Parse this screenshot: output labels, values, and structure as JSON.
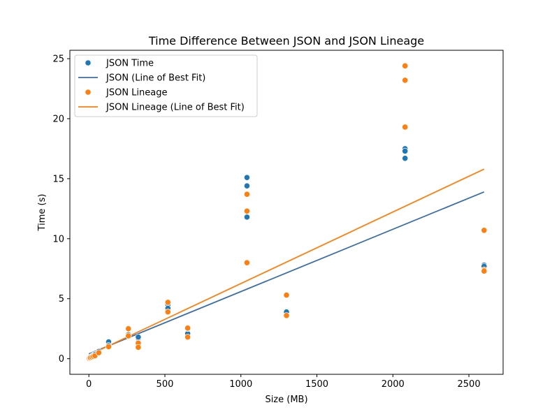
{
  "chart_data": {
    "type": "scatter",
    "title": "Time Difference Between JSON and JSON Lineage",
    "xlabel": "Size (MB)",
    "ylabel": "Time (s)",
    "xlim": [
      -125,
      2725
    ],
    "ylim": [
      -1.3,
      25.7
    ],
    "xticks": [
      0,
      500,
      1000,
      1500,
      2000,
      2500
    ],
    "yticks": [
      0,
      5,
      10,
      15,
      20,
      25
    ],
    "grid": false,
    "legend_position": "top-left",
    "series": [
      {
        "name": "JSON Time",
        "kind": "scatter",
        "color": "#1f77b4",
        "points": [
          [
            1,
            0.02
          ],
          [
            3,
            0.05
          ],
          [
            5,
            0.08
          ],
          [
            10,
            0.1
          ],
          [
            20,
            0.2
          ],
          [
            30,
            0.3
          ],
          [
            40,
            0.35
          ],
          [
            65,
            0.6
          ],
          [
            130,
            1.4
          ],
          [
            130,
            1.1
          ],
          [
            260,
            2.0
          ],
          [
            260,
            2.5
          ],
          [
            325,
            1.7
          ],
          [
            325,
            1.8
          ],
          [
            520,
            4.5
          ],
          [
            520,
            4.0
          ],
          [
            520,
            4.2
          ],
          [
            650,
            2.1
          ],
          [
            650,
            2.5
          ],
          [
            1040,
            15.1
          ],
          [
            1040,
            14.4
          ],
          [
            1040,
            11.8
          ],
          [
            1300,
            3.9
          ],
          [
            2080,
            17.5
          ],
          [
            2080,
            17.3
          ],
          [
            2080,
            16.7
          ],
          [
            2600,
            7.8
          ],
          [
            2600,
            7.7
          ]
        ]
      },
      {
        "name": "JSON (Line of Best Fit)",
        "kind": "line",
        "color": "#3b6ea8",
        "points": [
          [
            0,
            0.4
          ],
          [
            2600,
            13.9
          ]
        ]
      },
      {
        "name": "JSON Lineage",
        "kind": "scatter",
        "color": "#ff7f0e",
        "points": [
          [
            1,
            0.02
          ],
          [
            5,
            0.05
          ],
          [
            10,
            0.1
          ],
          [
            20,
            0.15
          ],
          [
            30,
            0.2
          ],
          [
            40,
            0.25
          ],
          [
            65,
            0.5
          ],
          [
            130,
            1.0
          ],
          [
            260,
            2.5
          ],
          [
            260,
            1.9
          ],
          [
            325,
            1.3
          ],
          [
            325,
            0.95
          ],
          [
            520,
            4.7
          ],
          [
            520,
            3.9
          ],
          [
            650,
            2.55
          ],
          [
            650,
            1.8
          ],
          [
            1040,
            13.7
          ],
          [
            1040,
            12.3
          ],
          [
            1040,
            8.0
          ],
          [
            1300,
            5.3
          ],
          [
            1300,
            3.6
          ],
          [
            2080,
            24.4
          ],
          [
            2080,
            23.2
          ],
          [
            2080,
            19.3
          ],
          [
            2600,
            10.7
          ],
          [
            2600,
            7.4
          ],
          [
            2600,
            7.3
          ]
        ]
      },
      {
        "name": "JSON Lineage (Line of Best Fit)",
        "kind": "line",
        "color": "#ff7f0e",
        "points": [
          [
            0,
            0.3
          ],
          [
            2600,
            15.8
          ]
        ]
      }
    ]
  }
}
